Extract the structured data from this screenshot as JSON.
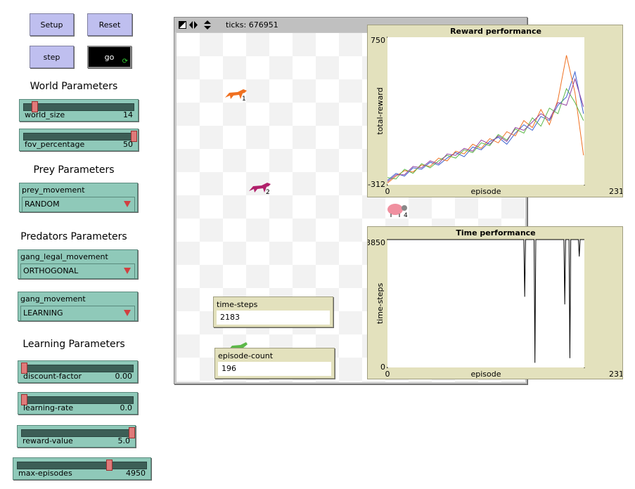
{
  "toolbar": {
    "ticks": "ticks: 676951"
  },
  "buttons": [
    "Setup",
    "Reset",
    "step",
    "go"
  ],
  "sections": [
    "World Parameters",
    "Prey Parameters",
    "Predators Parameters",
    "Learning Parameters"
  ],
  "sliders": [
    {
      "name": "world_size",
      "value": "14"
    },
    {
      "name": "fov_percentage",
      "value": "50"
    },
    {
      "name": "discount-factor",
      "value": "0.00"
    },
    {
      "name": "learning-rate",
      "value": "0.0"
    },
    {
      "name": "reward-value",
      "value": "5.0"
    },
    {
      "name": "max-episodes",
      "value": "4950"
    }
  ],
  "choosers": [
    {
      "name": "prey_movement",
      "value": "RANDOM"
    },
    {
      "name": "gang_legal_movement",
      "value": "ORTHOGONAL"
    },
    {
      "name": "gang_movement",
      "value": "LEARNING"
    }
  ],
  "monitors": [
    {
      "name": "time-steps",
      "value": "2183"
    },
    {
      "name": "episode-count",
      "value": "196"
    }
  ],
  "agent_labels": [
    "1",
    "2",
    "4"
  ],
  "chart_data": [
    {
      "type": "line",
      "title": "Reward performance",
      "x_label": "episode",
      "y_label": "total-reward",
      "x": [
        0,
        10,
        20,
        30,
        40,
        50,
        60,
        70,
        80,
        90,
        100,
        110,
        120,
        130,
        140,
        150,
        160,
        170,
        180,
        190,
        200,
        210,
        220,
        230
      ],
      "xlim": [
        0,
        231
      ],
      "xticks": [
        0,
        231
      ],
      "ylim": [
        -312,
        750
      ],
      "yticks": [
        -312,
        750
      ],
      "series": [
        {
          "color": "#3a5fcd",
          "values": [
            -280,
            -230,
            -250,
            -190,
            -200,
            -150,
            -170,
            -120,
            -80,
            -110,
            -40,
            -60,
            0,
            30,
            -20,
            60,
            120,
            80,
            180,
            150,
            260,
            320,
            500,
            200
          ]
        },
        {
          "color": "#f07020",
          "values": [
            -300,
            -250,
            -210,
            -220,
            -170,
            -180,
            -120,
            -140,
            -70,
            -90,
            -20,
            -50,
            20,
            -10,
            70,
            40,
            150,
            100,
            230,
            120,
            300,
            620,
            350,
            -100
          ]
        },
        {
          "color": "#5cb848",
          "values": [
            -260,
            -270,
            -200,
            -230,
            -160,
            -190,
            -140,
            -100,
            -120,
            -60,
            -80,
            -10,
            -30,
            50,
            10,
            90,
            60,
            170,
            110,
            240,
            200,
            380,
            280,
            150
          ]
        },
        {
          "color": "#9040a0",
          "values": [
            -290,
            -240,
            -240,
            -180,
            -190,
            -140,
            -160,
            -90,
            -100,
            -50,
            -70,
            10,
            -20,
            40,
            0,
            100,
            80,
            140,
            200,
            160,
            280,
            260,
            450,
            250
          ]
        }
      ]
    },
    {
      "type": "line",
      "title": "Time performance",
      "x_label": "episode",
      "y_label": "time-steps",
      "x": [
        0,
        160,
        161,
        162,
        172,
        173,
        174,
        207,
        208,
        209,
        213,
        214,
        215,
        224,
        225,
        226,
        231
      ],
      "xlim": [
        0,
        231
      ],
      "xticks": [
        0,
        231
      ],
      "ylim": [
        0,
        3850
      ],
      "yticks": [
        0,
        3850
      ],
      "series": [
        {
          "color": "#000000",
          "values": [
            3850,
            3850,
            2130,
            3850,
            3850,
            140,
            3850,
            3850,
            1900,
            3850,
            3850,
            280,
            3850,
            3850,
            3340,
            3850,
            3850
          ]
        }
      ]
    }
  ]
}
